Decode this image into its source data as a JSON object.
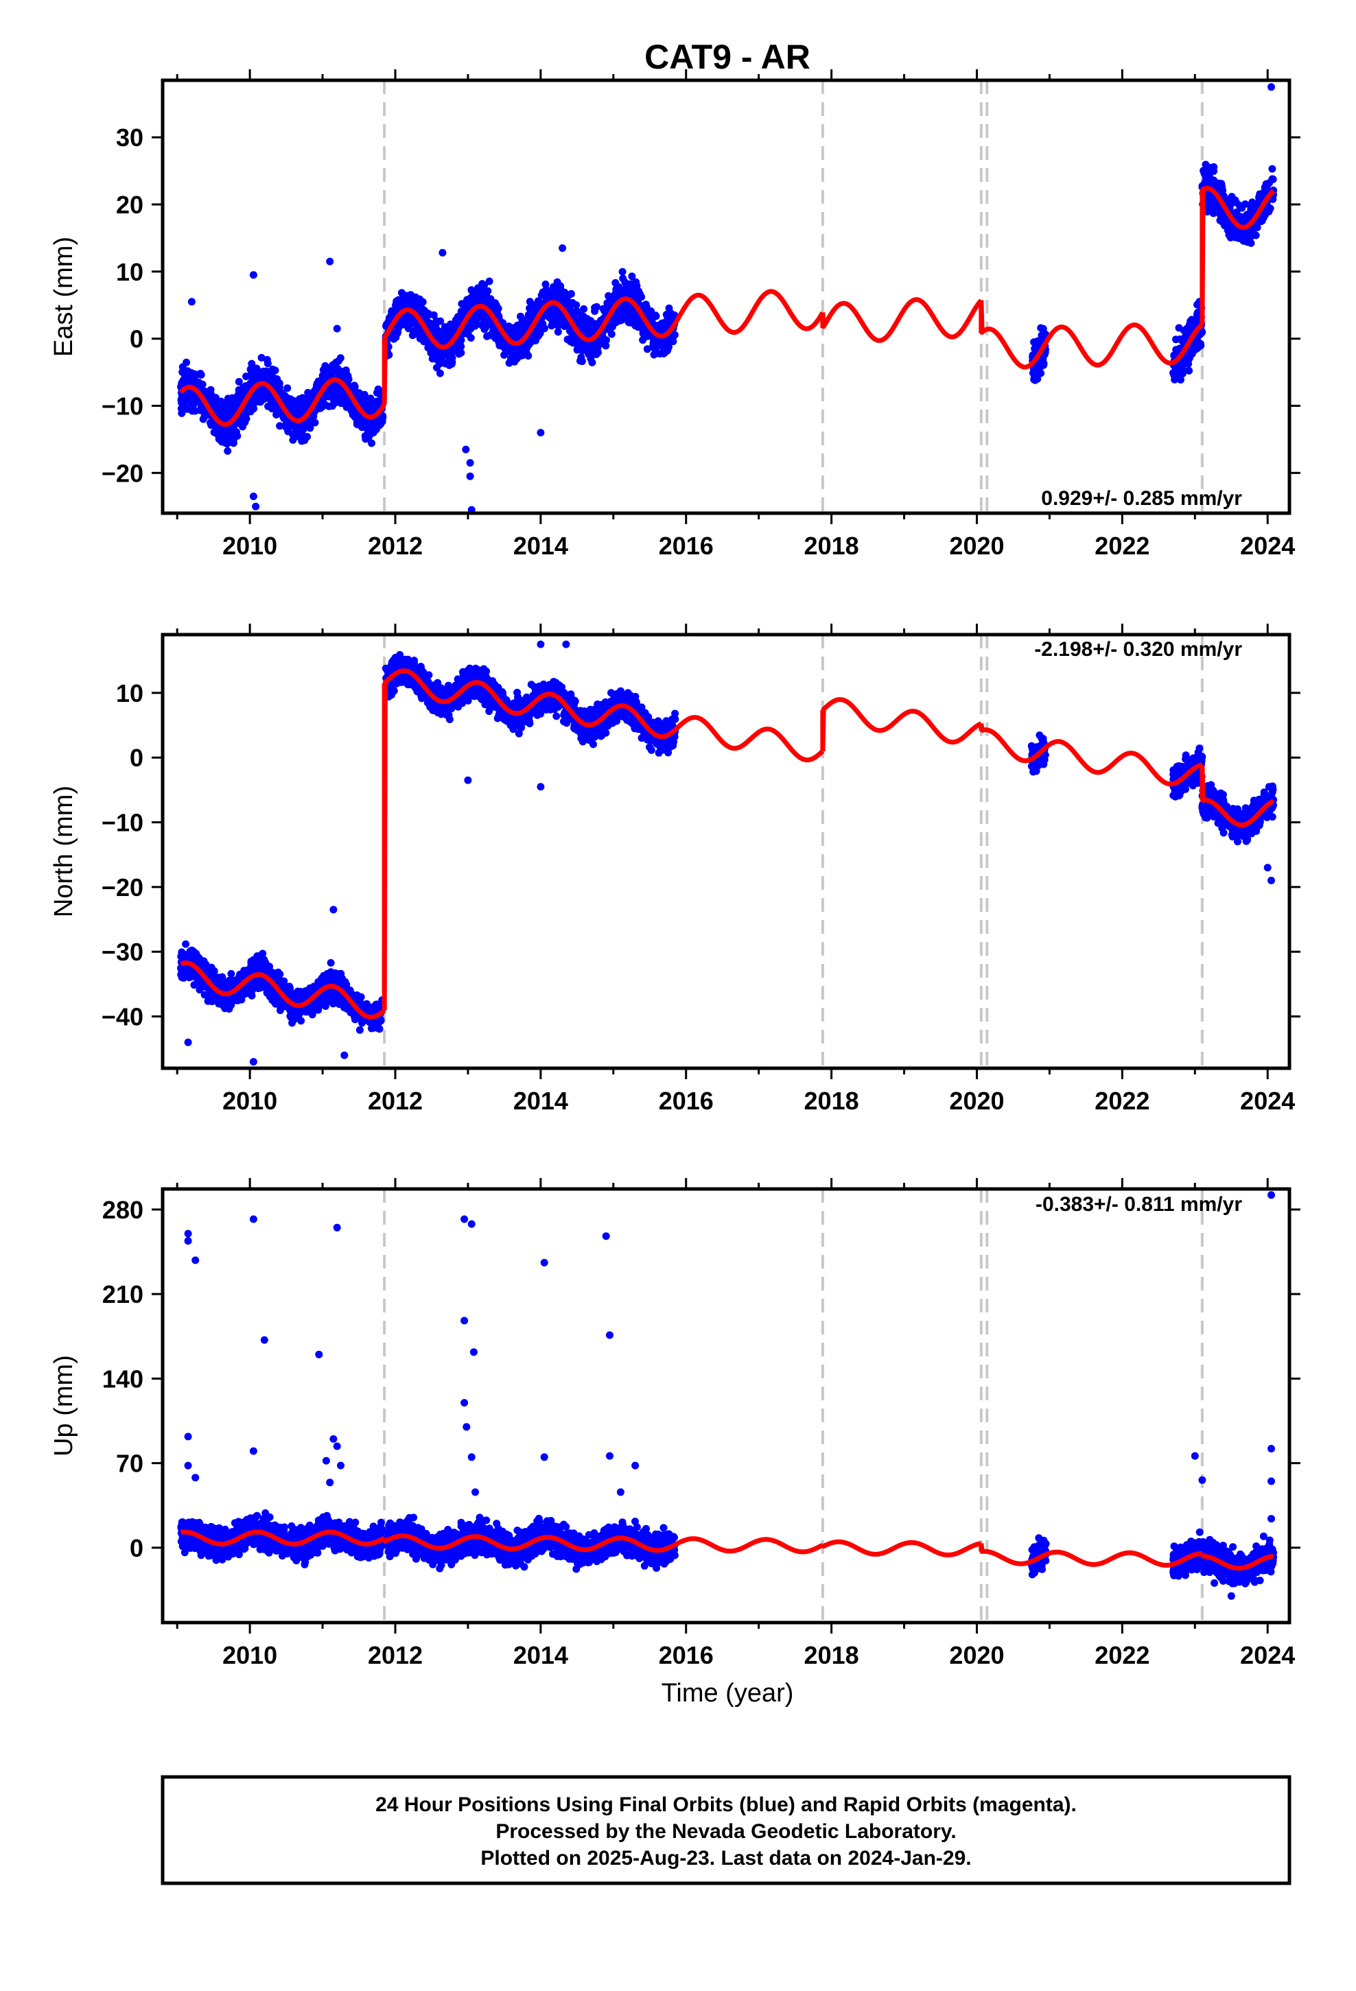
{
  "title": "CAT9 - AR",
  "xlabel": "Time (year)",
  "x_ticks": [
    "2010",
    "2012",
    "2014",
    "2016",
    "2018",
    "2020",
    "2022",
    "2024"
  ],
  "footer": {
    "line1": "24 Hour Positions Using Final Orbits (blue) and Rapid Orbits (magenta).",
    "line2": "Processed by the Nevada Geodetic Laboratory.",
    "line3": "Plotted on 2025-Aug-23. Last data on 2024-Jan-29."
  },
  "colors": {
    "points": "#0000ff",
    "fit": "#ff0000",
    "event_lines": "#c8c8c8"
  },
  "chart_data": [
    {
      "type": "scatter",
      "id": "east",
      "ylabel": "East (mm)",
      "rate": "0.929+/- 0.285 mm/yr",
      "xlim": [
        2008.8,
        2024.3
      ],
      "ylim": [
        -26,
        38.5
      ],
      "yticks": [
        -20,
        -10,
        0,
        10,
        20,
        30
      ],
      "event_lines": [
        2011.85,
        2017.88,
        2020.06,
        2020.14,
        2023.1
      ],
      "data_segments": [
        [
          2009.05,
          2011.83
        ],
        [
          2011.87,
          2015.85
        ],
        [
          2020.75,
          2020.95
        ],
        [
          2022.7,
          2024.08
        ]
      ],
      "fit": {
        "segments": [
          {
            "x0": 2009.05,
            "x1": 2011.85,
            "a": -10.2,
            "r": 0.55,
            "c": 1.5,
            "s": 2.5
          },
          {
            "x0": 2011.85,
            "x1": 2017.88,
            "a": 1.2,
            "r": 0.55,
            "c": 1.5,
            "s": 2.5
          },
          {
            "x0": 2017.88,
            "x1": 2020.06,
            "a": 2.2,
            "r": 0.55,
            "c": 1.5,
            "s": 2.5
          },
          {
            "x0": 2020.06,
            "x1": 2023.1,
            "a": -1.5,
            "r": 0.3,
            "c": 1.5,
            "s": 2.5
          },
          {
            "x0": 2023.1,
            "x1": 2024.08,
            "a": 19.5,
            "r": 0.0,
            "c": 1.5,
            "s": 2.5
          }
        ]
      },
      "outliers": [
        [
          2009.2,
          5.5
        ],
        [
          2010.05,
          9.5
        ],
        [
          2010.05,
          -23.5
        ],
        [
          2010.08,
          -25
        ],
        [
          2011.1,
          11.5
        ],
        [
          2011.2,
          1.5
        ],
        [
          2012.65,
          12.8
        ],
        [
          2012.97,
          -16.5
        ],
        [
          2013.03,
          -18.5
        ],
        [
          2013.03,
          -20.5
        ],
        [
          2013.05,
          -25.5
        ],
        [
          2014.3,
          13.5
        ],
        [
          2014.0,
          -14
        ],
        [
          2024.05,
          37.5
        ]
      ]
    },
    {
      "type": "scatter",
      "id": "north",
      "ylabel": "North (mm)",
      "rate": "-2.198+/- 0.320 mm/yr",
      "xlim": [
        2008.8,
        2024.3
      ],
      "ylim": [
        -48,
        19
      ],
      "yticks": [
        -40,
        -30,
        -20,
        -10,
        0,
        10
      ],
      "event_lines": [
        2011.85,
        2017.88,
        2020.06,
        2020.14,
        2023.1
      ],
      "data_segments": [
        [
          2009.05,
          2011.83
        ],
        [
          2011.87,
          2015.85
        ],
        [
          2020.75,
          2020.95
        ],
        [
          2022.7,
          2024.08
        ]
      ],
      "fit": {
        "segments": [
          {
            "x0": 2009.05,
            "x1": 2011.85,
            "a": -33.5,
            "r": -1.8,
            "c": 1.2,
            "s": 1.5
          },
          {
            "x0": 2011.85,
            "x1": 2017.88,
            "a": 12.0,
            "r": -1.8,
            "c": 1.2,
            "s": 1.5
          },
          {
            "x0": 2017.88,
            "x1": 2020.06,
            "a": 7.5,
            "r": -1.8,
            "c": 1.2,
            "s": 1.5
          },
          {
            "x0": 2020.06,
            "x1": 2023.1,
            "a": 2.5,
            "r": -1.8,
            "c": 1.2,
            "s": 1.5
          },
          {
            "x0": 2023.1,
            "x1": 2024.08,
            "a": -8.5,
            "r": 0.0,
            "c": 1.2,
            "s": 1.5
          }
        ]
      },
      "outliers": [
        [
          2009.15,
          -44
        ],
        [
          2010.05,
          -47
        ],
        [
          2011.15,
          -23.5
        ],
        [
          2011.3,
          -46
        ],
        [
          2013.0,
          -3.5
        ],
        [
          2014.0,
          -4.5
        ],
        [
          2014.0,
          17.5
        ],
        [
          2014.35,
          17.5
        ],
        [
          2024.05,
          -19
        ],
        [
          2024.0,
          -17
        ]
      ]
    },
    {
      "type": "scatter",
      "id": "up",
      "ylabel": "Up (mm)",
      "rate": "-0.383+/- 0.811 mm/yr",
      "xlim": [
        2008.8,
        2024.3
      ],
      "ylim": [
        -62,
        297
      ],
      "yticks": [
        0,
        70,
        140,
        210,
        280
      ],
      "event_lines": [
        2011.85,
        2017.88,
        2020.06,
        2020.14,
        2023.1
      ],
      "data_segments": [
        [
          2009.05,
          2011.83
        ],
        [
          2011.87,
          2015.85
        ],
        [
          2020.75,
          2020.95
        ],
        [
          2022.7,
          2024.08
        ]
      ],
      "fit": {
        "segments": [
          {
            "x0": 2009.05,
            "x1": 2011.85,
            "a": 8.0,
            "r": 0.0,
            "c": 4.0,
            "s": 3.0
          },
          {
            "x0": 2011.85,
            "x1": 2017.88,
            "a": 5.0,
            "r": -0.6,
            "c": 4.0,
            "s": 3.0
          },
          {
            "x0": 2017.88,
            "x1": 2020.06,
            "a": 0.0,
            "r": -0.6,
            "c": 4.0,
            "s": 3.0
          },
          {
            "x0": 2020.06,
            "x1": 2023.1,
            "a": -8.0,
            "r": -0.6,
            "c": 4.0,
            "s": 3.0
          },
          {
            "x0": 2023.1,
            "x1": 2024.08,
            "a": -12.0,
            "r": 0.0,
            "c": 4.0,
            "s": 3.0
          }
        ]
      },
      "outliers": [
        [
          2009.15,
          260
        ],
        [
          2009.15,
          254
        ],
        [
          2009.25,
          238
        ],
        [
          2009.15,
          92
        ],
        [
          2009.15,
          68
        ],
        [
          2009.25,
          58
        ],
        [
          2010.05,
          272
        ],
        [
          2010.05,
          80
        ],
        [
          2010.2,
          172
        ],
        [
          2010.95,
          160
        ],
        [
          2011.05,
          72
        ],
        [
          2011.1,
          54
        ],
        [
          2011.15,
          90
        ],
        [
          2011.2,
          265
        ],
        [
          2011.2,
          84
        ],
        [
          2011.25,
          68
        ],
        [
          2012.95,
          272
        ],
        [
          2012.95,
          188
        ],
        [
          2012.95,
          120
        ],
        [
          2012.98,
          100
        ],
        [
          2013.05,
          268
        ],
        [
          2013.08,
          162
        ],
        [
          2013.05,
          75
        ],
        [
          2013.1,
          46
        ],
        [
          2014.05,
          236
        ],
        [
          2014.05,
          75
        ],
        [
          2014.9,
          258
        ],
        [
          2014.95,
          176
        ],
        [
          2014.95,
          76
        ],
        [
          2015.1,
          46
        ],
        [
          2015.3,
          68
        ],
        [
          2023.0,
          76
        ],
        [
          2023.1,
          56
        ],
        [
          2024.05,
          292
        ],
        [
          2024.05,
          82
        ],
        [
          2024.05,
          55
        ],
        [
          2024.05,
          24
        ],
        [
          2023.5,
          -40
        ]
      ]
    }
  ]
}
